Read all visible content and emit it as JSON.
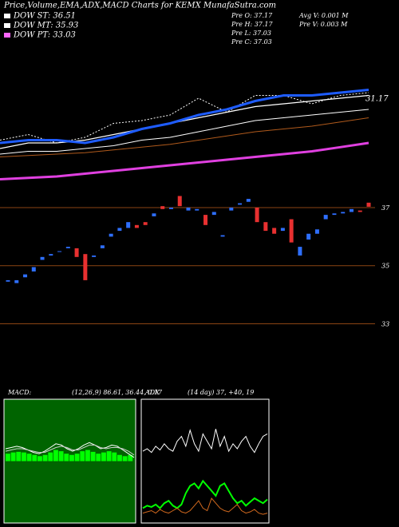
{
  "chart_data": [
    {
      "type": "ema",
      "title": "Price,Volume,EMA,ADX,MACD Charts for KEMX MunafaSutra.com",
      "legend": [
        {
          "label": "DOW ST: 36.51",
          "color": "#ffffff"
        },
        {
          "label": "DOW MT: 35.93",
          "color": "#ffffff"
        },
        {
          "label": "DOW PT: 33.03",
          "color": "#ff66ff"
        }
      ],
      "info": [
        "Pre O: 37.17",
        "Pre H: 37.17",
        "Pre L: 37.03",
        "Pre C: 37.03",
        "Avg V: 0.001 M",
        "Pre V: 0.003 M"
      ],
      "ylim": [
        28,
        33
      ],
      "annotation": {
        "value": 31.17,
        "label": "31.17"
      },
      "series": [
        {
          "color": "#ffffff",
          "width": 1,
          "dash": true,
          "values": [
            29.7,
            29.9,
            29.6,
            29.8,
            30.3,
            30.4,
            30.6,
            31.2,
            30.7,
            31.3,
            31.3,
            31.0,
            31.3,
            31.4
          ]
        },
        {
          "color": "#ffffff",
          "width": 1.2,
          "dash": false,
          "values": [
            29.4,
            29.6,
            29.6,
            29.7,
            29.9,
            30.1,
            30.3,
            30.5,
            30.7,
            30.9,
            31.0,
            31.1,
            31.2,
            31.3
          ]
        },
        {
          "color": "#1e5cff",
          "width": 3,
          "dash": false,
          "values": [
            29.6,
            29.7,
            29.7,
            29.6,
            29.8,
            30.1,
            30.3,
            30.6,
            30.8,
            31.1,
            31.3,
            31.3,
            31.4,
            31.5
          ]
        },
        {
          "color": "#ffffff",
          "width": 1,
          "dash": false,
          "values": [
            29.2,
            29.3,
            29.3,
            29.4,
            29.5,
            29.7,
            29.8,
            30.0,
            30.2,
            30.4,
            30.5,
            30.6,
            30.7,
            30.8
          ]
        },
        {
          "color": "#b05a1c",
          "width": 1,
          "dash": false,
          "values": [
            29.1,
            29.15,
            29.2,
            29.25,
            29.35,
            29.45,
            29.55,
            29.7,
            29.85,
            30.0,
            30.1,
            30.2,
            30.35,
            30.5
          ]
        },
        {
          "color": "#e040e0",
          "width": 3,
          "dash": false,
          "values": [
            28.3,
            28.35,
            28.4,
            28.5,
            28.6,
            28.7,
            28.8,
            28.9,
            29.0,
            29.1,
            29.2,
            29.3,
            29.45,
            29.6
          ]
        }
      ]
    },
    {
      "type": "candlestick",
      "ylim": [
        32.6,
        37.55
      ],
      "yticks": [
        33,
        35,
        37
      ],
      "up_color": "#2e6fff",
      "down_color": "#e83030",
      "grid_color": "#8b4513",
      "open": [
        34.45,
        34.4,
        34.6,
        34.8,
        35.2,
        35.35,
        35.5,
        35.6,
        35.6,
        35.4,
        35.3,
        35.6,
        36.0,
        36.2,
        36.3,
        36.4,
        36.5,
        36.7,
        37.05,
        36.95,
        37.4,
        36.9,
        36.9,
        36.75,
        36.75,
        36.0,
        36.9,
        37.1,
        37.2,
        37.0,
        36.5,
        36.3,
        36.2,
        36.6,
        35.35,
        35.9,
        36.1,
        36.6,
        36.75,
        36.8,
        36.85,
        36.9,
        37.17
      ],
      "close": [
        34.5,
        34.5,
        34.7,
        34.95,
        35.3,
        35.4,
        35.5,
        35.65,
        35.3,
        34.5,
        35.35,
        35.7,
        36.1,
        36.3,
        36.5,
        36.3,
        36.4,
        36.8,
        36.95,
        37.0,
        37.05,
        37.0,
        36.95,
        36.4,
        36.85,
        36.05,
        37.0,
        37.15,
        37.3,
        36.5,
        36.2,
        36.1,
        36.3,
        35.8,
        35.65,
        36.1,
        36.25,
        36.75,
        36.8,
        36.85,
        36.95,
        36.85,
        37.03
      ]
    },
    {
      "type": "macd",
      "label": "MACD:",
      "params": "(12,26,9) 86.61, 36.44, 0.17",
      "ylim": [
        -1,
        1
      ],
      "background": "#006400",
      "bars": [
        0.12,
        0.14,
        0.15,
        0.14,
        0.12,
        0.1,
        0.08,
        0.1,
        0.14,
        0.18,
        0.16,
        0.12,
        0.1,
        0.12,
        0.16,
        0.18,
        0.15,
        0.12,
        0.14,
        0.16,
        0.14,
        0.1,
        0.08,
        0.1
      ],
      "series": [
        {
          "color": "#ffffff",
          "values": [
            0.2,
            0.22,
            0.24,
            0.22,
            0.18,
            0.14,
            0.12,
            0.16,
            0.22,
            0.28,
            0.26,
            0.2,
            0.16,
            0.2,
            0.26,
            0.3,
            0.26,
            0.2,
            0.22,
            0.26,
            0.24,
            0.18,
            0.12,
            0.06
          ]
        },
        {
          "color": "#cccccc",
          "values": [
            0.16,
            0.18,
            0.2,
            0.2,
            0.18,
            0.16,
            0.14,
            0.14,
            0.18,
            0.22,
            0.24,
            0.22,
            0.18,
            0.18,
            0.22,
            0.26,
            0.26,
            0.22,
            0.2,
            0.22,
            0.22,
            0.2,
            0.16,
            0.1
          ]
        }
      ]
    },
    {
      "type": "adx",
      "label": "ADX",
      "params": "(14  day) 37, +40, 19",
      "ylim": [
        0,
        100
      ],
      "background": "#000000",
      "series": [
        {
          "color": "#ffffff",
          "values": [
            58,
            60,
            57,
            62,
            59,
            64,
            60,
            58,
            66,
            70,
            62,
            75,
            64,
            58,
            72,
            66,
            60,
            76,
            62,
            70,
            58,
            64,
            60,
            66,
            70,
            62,
            57,
            64,
            70,
            72
          ]
        },
        {
          "color": "#00ff00",
          "values": [
            12,
            14,
            13,
            15,
            12,
            16,
            18,
            14,
            12,
            15,
            24,
            30,
            32,
            28,
            34,
            30,
            26,
            22,
            30,
            32,
            26,
            20,
            16,
            18,
            14,
            17,
            20,
            18,
            16,
            19
          ]
        },
        {
          "color": "#d2691e",
          "values": [
            8,
            9,
            10,
            8,
            11,
            9,
            8,
            10,
            12,
            9,
            8,
            10,
            14,
            18,
            12,
            10,
            20,
            16,
            12,
            10,
            9,
            12,
            15,
            10,
            8,
            9,
            11,
            8,
            7,
            8
          ]
        }
      ]
    }
  ]
}
